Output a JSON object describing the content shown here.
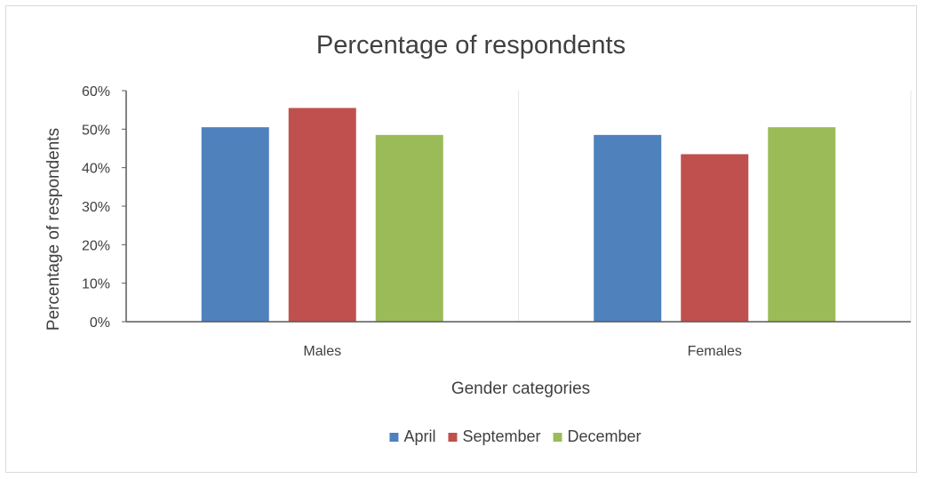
{
  "chart_data": {
    "type": "bar",
    "title": "Percentage of respondents",
    "xlabel": "Gender categories",
    "ylabel": "Percentage of respondents",
    "categories": [
      "Males",
      "Females"
    ],
    "series": [
      {
        "name": "April",
        "values": [
          50.5,
          48.5
        ],
        "color": "#4f81bd"
      },
      {
        "name": "September",
        "values": [
          55.5,
          43.5
        ],
        "color": "#c0504d"
      },
      {
        "name": "December",
        "values": [
          48.5,
          50.5
        ],
        "color": "#9bbb59"
      }
    ],
    "ylim": [
      0,
      60
    ],
    "yticks": [
      "0%",
      "10%",
      "20%",
      "30%",
      "40%",
      "50%",
      "60%"
    ],
    "grid": false,
    "legend_position": "bottom"
  }
}
